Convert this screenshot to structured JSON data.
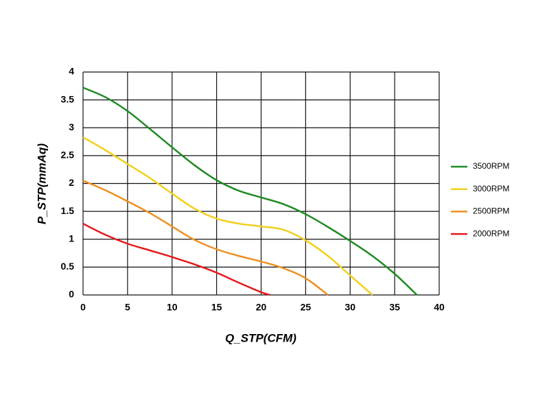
{
  "chart_data": {
    "type": "line",
    "xlabel": "Q_STP(CFM)",
    "ylabel": "P_STP(mmAq)",
    "xlim": [
      0,
      40
    ],
    "xticks": [
      0,
      5,
      10,
      15,
      20,
      25,
      30,
      35,
      40
    ],
    "ylim": [
      0,
      4
    ],
    "yticks": [
      0,
      0.5,
      1,
      1.5,
      2,
      2.5,
      3,
      3.5,
      4
    ],
    "grid": true,
    "legend": "right",
    "series": [
      {
        "name": "3500RPM",
        "color": "#1f8a24",
        "x": [
          0,
          2.5,
          5,
          7.5,
          10,
          12.5,
          15,
          17.5,
          20,
          22.5,
          25,
          27.5,
          30,
          32.5,
          35,
          37.5
        ],
        "values": [
          3.72,
          3.55,
          3.3,
          2.98,
          2.65,
          2.33,
          2.06,
          1.87,
          1.75,
          1.63,
          1.45,
          1.22,
          0.97,
          0.7,
          0.38,
          0
        ]
      },
      {
        "name": "3000RPM",
        "color": "#f2d01a",
        "x": [
          0,
          2.5,
          5,
          7.5,
          10,
          12.5,
          15,
          17.5,
          20,
          22.5,
          25,
          27.5,
          30,
          32.5
        ],
        "values": [
          2.83,
          2.6,
          2.35,
          2.1,
          1.82,
          1.55,
          1.37,
          1.28,
          1.23,
          1.17,
          0.98,
          0.7,
          0.35,
          0
        ]
      },
      {
        "name": "2500RPM",
        "color": "#ef8f1e",
        "x": [
          0,
          2.5,
          5,
          7.5,
          10,
          12.5,
          15,
          17.5,
          20,
          22.5,
          25,
          27.5
        ],
        "values": [
          2.05,
          1.88,
          1.68,
          1.47,
          1.23,
          0.99,
          0.82,
          0.7,
          0.6,
          0.48,
          0.3,
          0
        ]
      },
      {
        "name": "2000RPM",
        "color": "#e3191b",
        "x": [
          0,
          2.5,
          5,
          7.5,
          10,
          12.5,
          15,
          17.5,
          20,
          21
        ],
        "values": [
          1.28,
          1.08,
          0.92,
          0.8,
          0.68,
          0.55,
          0.4,
          0.22,
          0.05,
          0
        ]
      }
    ]
  }
}
